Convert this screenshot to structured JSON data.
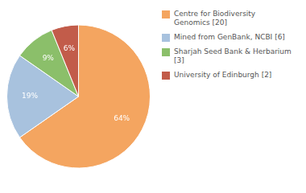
{
  "chart_data": {
    "type": "pie",
    "categories": [
      "Centre for Biodiversity\nGenomics [20]",
      "Mined from GenBank, NCBI [6]",
      "Sharjah Seed Bank & Herbarium [3]",
      "University of Edinburgh [2]"
    ],
    "values": [
      64,
      19,
      9,
      6
    ],
    "value_labels": [
      "64%",
      "19%",
      "9%",
      "6%"
    ],
    "colors": [
      "#F4A560",
      "#A8C2DE",
      "#8BBF6A",
      "#C25C4A"
    ],
    "data_labels": true,
    "legend": "right"
  }
}
